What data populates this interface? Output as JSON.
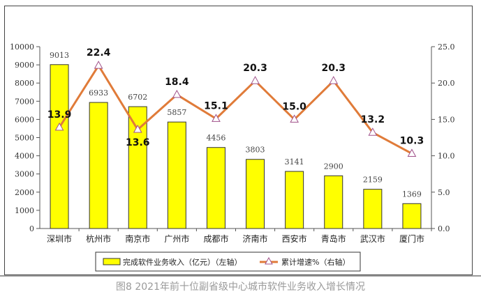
{
  "chart_data": {
    "type": "bar+line",
    "categories": [
      "深圳市",
      "杭州市",
      "南京市",
      "广州市",
      "成都市",
      "济南市",
      "西安市",
      "青岛市",
      "武汉市",
      "厦门市"
    ],
    "series": [
      {
        "name": "完成软件业务收入（亿元）（左轴）",
        "type": "bar",
        "axis": "left",
        "values": [
          9013,
          6933,
          6702,
          5857,
          4456,
          3803,
          3141,
          2900,
          2159,
          1369
        ],
        "color": "#ffff00"
      },
      {
        "name": "累计增速%（右轴）",
        "type": "line",
        "axis": "right",
        "values": [
          13.9,
          22.4,
          13.6,
          18.4,
          15.1,
          20.3,
          15.0,
          20.3,
          13.2,
          10.3
        ],
        "labels": [
          "13.9",
          "22.4",
          "13.6",
          "18.4",
          "15.1",
          "20.3",
          "15.0",
          "20.3",
          "13.2",
          "10.3"
        ],
        "color": "#e07b39"
      }
    ],
    "left_axis": {
      "range": [
        0,
        10000
      ],
      "ticks": [
        "0",
        "1000",
        "2000",
        "3000",
        "4000",
        "5000",
        "6000",
        "7000",
        "8000",
        "9000",
        "10000"
      ]
    },
    "right_axis": {
      "range": [
        0,
        25
      ],
      "ticks": [
        "0.0",
        "5.0",
        "10.0",
        "15.0",
        "20.0",
        "25.0"
      ]
    },
    "grid": false,
    "legend_placement": "bottom",
    "caption": "图8  2021年前十位副省级中心城市软件业务收入增长情况"
  }
}
